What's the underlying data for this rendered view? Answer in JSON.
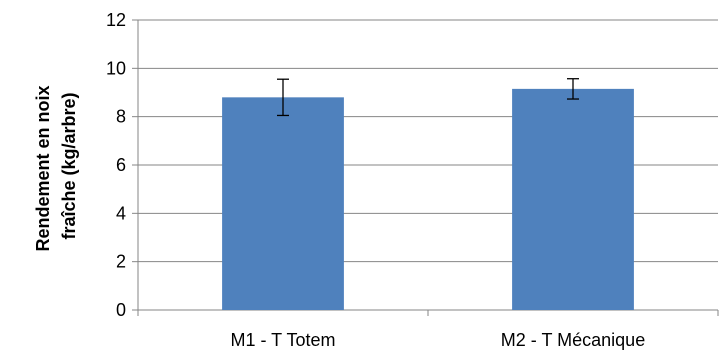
{
  "chart_data": {
    "type": "bar",
    "categories": [
      "M1 - T Totem",
      "M2 - T Mécanique"
    ],
    "values": [
      8.8,
      9.15
    ],
    "error_bars": [
      0.75,
      0.42
    ],
    "ylabel_lines": [
      "Rendement en noix",
      "fraîche (kg/arbre)"
    ],
    "xlabel": "",
    "ylim": [
      0,
      12
    ],
    "yticks": [
      "0",
      "2",
      "4",
      "6",
      "8",
      "10",
      "12"
    ],
    "grid": true,
    "legend": "none",
    "bar_color": "#4f81bd",
    "grid_color": "#868686",
    "axis_color": "#868686"
  }
}
